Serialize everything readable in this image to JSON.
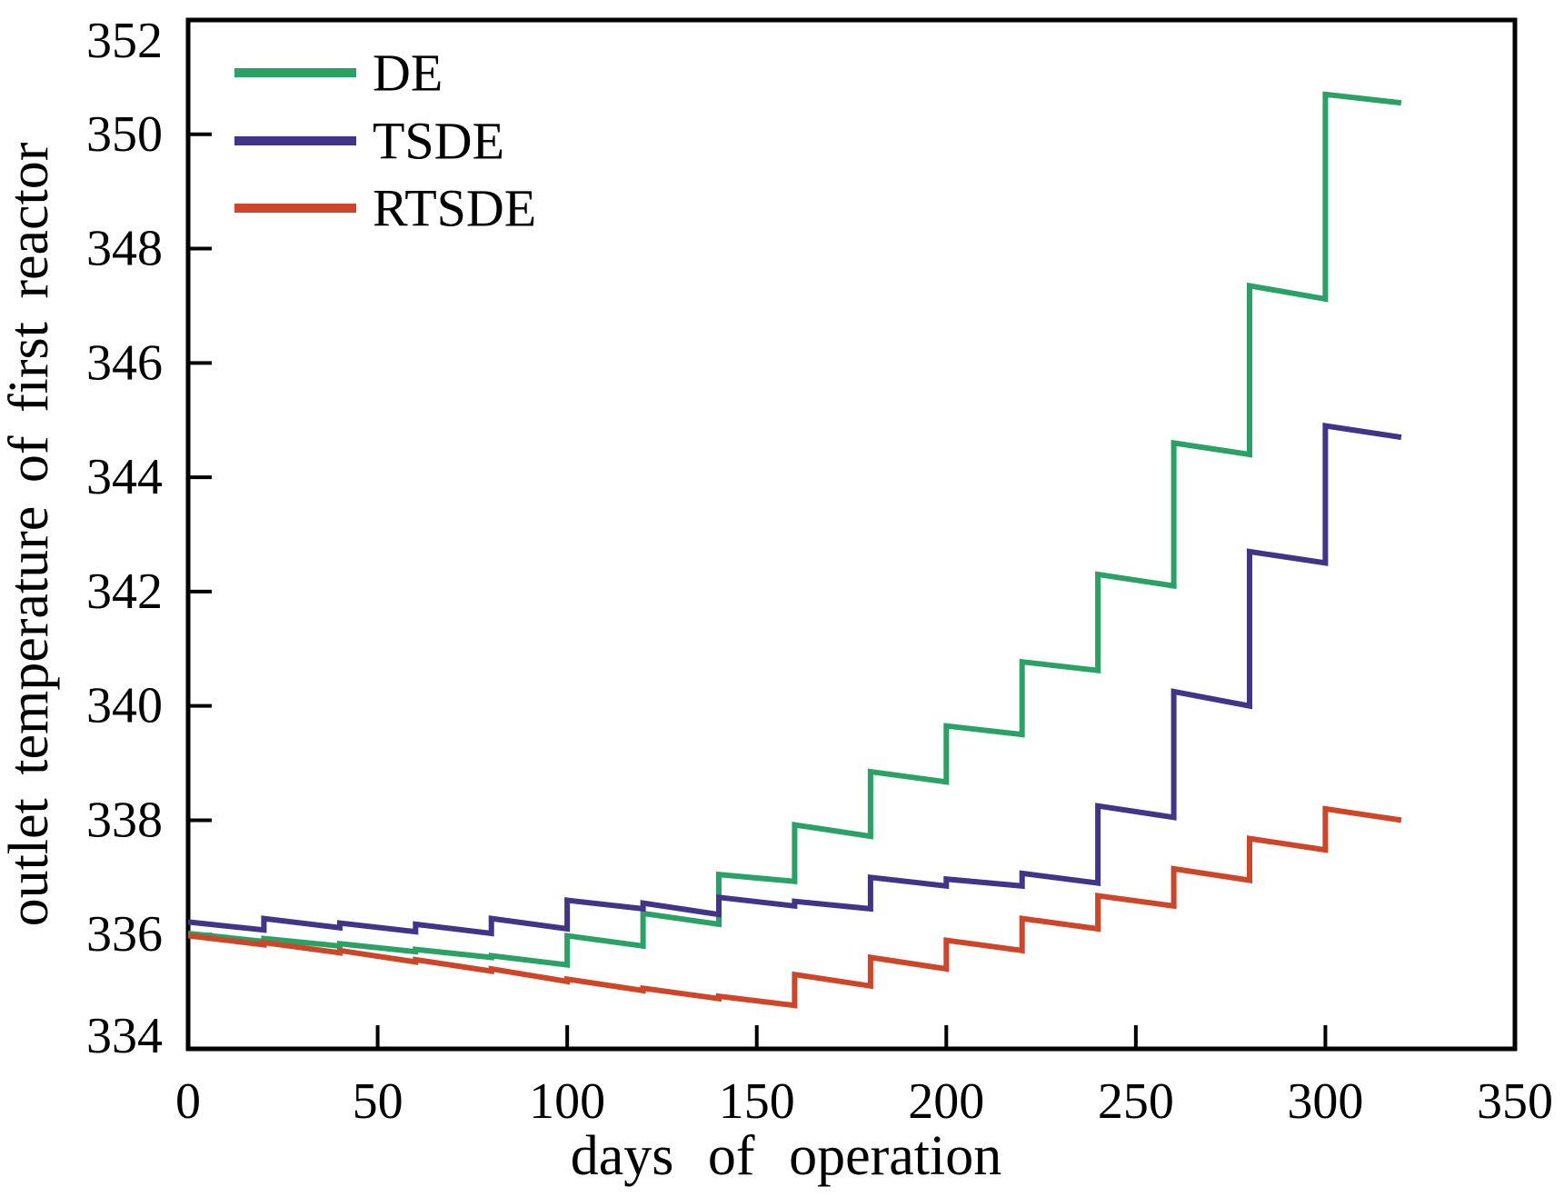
{
  "chart_data": {
    "type": "line",
    "subtype": "stepwise-cycles",
    "title": "",
    "xlabel": "days of operation",
    "ylabel": "outlet temperature of first reactor",
    "xlim": [
      0,
      350
    ],
    "ylim": [
      334,
      352
    ],
    "x_ticks": [
      0,
      50,
      100,
      150,
      200,
      250,
      300,
      350
    ],
    "y_ticks": [
      334,
      336,
      338,
      340,
      342,
      344,
      346,
      348,
      350,
      352
    ],
    "grid": false,
    "legend_position": "top-left-inside",
    "frame_color": "#000000",
    "series": [
      {
        "name": "DE",
        "color": "#2aa266",
        "points": [
          [
            0,
            336.02
          ],
          [
            20,
            335.88
          ],
          [
            20,
            335.93
          ],
          [
            40,
            335.8
          ],
          [
            40,
            335.84
          ],
          [
            60,
            335.7
          ],
          [
            60,
            335.74
          ],
          [
            80,
            335.6
          ],
          [
            80,
            335.63
          ],
          [
            100,
            335.47
          ],
          [
            100,
            335.98
          ],
          [
            120,
            335.8
          ],
          [
            120,
            336.37
          ],
          [
            140,
            336.18
          ],
          [
            140,
            337.05
          ],
          [
            160,
            336.93
          ],
          [
            160,
            337.92
          ],
          [
            180,
            337.72
          ],
          [
            180,
            338.85
          ],
          [
            200,
            338.67
          ],
          [
            200,
            339.65
          ],
          [
            220,
            339.5
          ],
          [
            220,
            340.77
          ],
          [
            240,
            340.62
          ],
          [
            240,
            342.3
          ],
          [
            260,
            342.1
          ],
          [
            260,
            344.6
          ],
          [
            280,
            344.4
          ],
          [
            280,
            347.35
          ],
          [
            300,
            347.12
          ],
          [
            300,
            350.7
          ],
          [
            320,
            350.55
          ]
        ]
      },
      {
        "name": "TSDE",
        "color": "#423488",
        "points": [
          [
            0,
            336.22
          ],
          [
            20,
            336.08
          ],
          [
            20,
            336.28
          ],
          [
            40,
            336.12
          ],
          [
            40,
            336.2
          ],
          [
            60,
            336.05
          ],
          [
            60,
            336.18
          ],
          [
            80,
            336.02
          ],
          [
            80,
            336.28
          ],
          [
            100,
            336.1
          ],
          [
            100,
            336.6
          ],
          [
            120,
            336.45
          ],
          [
            120,
            336.55
          ],
          [
            140,
            336.35
          ],
          [
            140,
            336.65
          ],
          [
            160,
            336.5
          ],
          [
            160,
            336.58
          ],
          [
            180,
            336.45
          ],
          [
            180,
            337.0
          ],
          [
            200,
            336.85
          ],
          [
            200,
            336.97
          ],
          [
            220,
            336.85
          ],
          [
            220,
            337.07
          ],
          [
            240,
            336.9
          ],
          [
            240,
            338.25
          ],
          [
            260,
            338.05
          ],
          [
            260,
            340.25
          ],
          [
            280,
            340.0
          ],
          [
            280,
            342.7
          ],
          [
            300,
            342.5
          ],
          [
            300,
            344.9
          ],
          [
            320,
            344.7
          ]
        ]
      },
      {
        "name": "RTSDE",
        "color": "#cf4527",
        "points": [
          [
            0,
            335.98
          ],
          [
            20,
            335.82
          ],
          [
            20,
            335.86
          ],
          [
            40,
            335.68
          ],
          [
            40,
            335.72
          ],
          [
            60,
            335.52
          ],
          [
            60,
            335.56
          ],
          [
            80,
            335.36
          ],
          [
            80,
            335.4
          ],
          [
            100,
            335.18
          ],
          [
            100,
            335.22
          ],
          [
            120,
            335.02
          ],
          [
            120,
            335.06
          ],
          [
            140,
            334.88
          ],
          [
            140,
            334.92
          ],
          [
            160,
            334.76
          ],
          [
            160,
            335.3
          ],
          [
            180,
            335.1
          ],
          [
            180,
            335.6
          ],
          [
            200,
            335.4
          ],
          [
            200,
            335.9
          ],
          [
            220,
            335.72
          ],
          [
            220,
            336.28
          ],
          [
            240,
            336.1
          ],
          [
            240,
            336.68
          ],
          [
            260,
            336.5
          ],
          [
            260,
            337.15
          ],
          [
            280,
            336.95
          ],
          [
            280,
            337.68
          ],
          [
            300,
            337.48
          ],
          [
            300,
            338.2
          ],
          [
            320,
            338.0
          ]
        ]
      }
    ]
  }
}
